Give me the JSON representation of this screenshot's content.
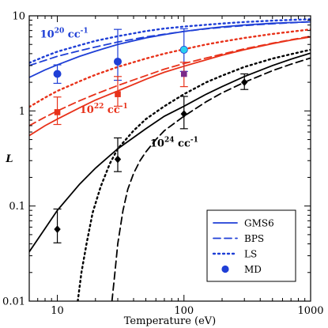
{
  "chart_data": {
    "type": "line",
    "xlabel": "Temperature (eV)",
    "ylabel": "L",
    "x_scale": "log",
    "y_scale": "log",
    "xlim": [
      6,
      1000
    ],
    "ylim": [
      0.01,
      10
    ],
    "x_ticks": [
      10,
      100,
      1000
    ],
    "x_tick_labels": [
      "10",
      "100",
      "1000"
    ],
    "y_ticks": [
      0.01,
      0.1,
      1,
      10
    ],
    "y_tick_labels": [
      "0.01",
      "0.1",
      "1",
      "10"
    ],
    "grid": false,
    "legend_position": "lower-right",
    "legend": [
      {
        "label": "GMS6",
        "style": "solid"
      },
      {
        "label": "BPS",
        "style": "dashed"
      },
      {
        "label": "LS",
        "style": "dotted"
      },
      {
        "label": "MD",
        "style": "marker"
      }
    ],
    "annotations": [
      {
        "base": "10",
        "exp": "20",
        "unit": " cc",
        "unit_exp": "-1",
        "color": "#1f3fd6",
        "x": 7.3,
        "y": 5.9
      },
      {
        "base": "10",
        "exp": "22",
        "unit": " cc",
        "unit_exp": "-1",
        "color": "#e8321a",
        "x": 15,
        "y": 0.95
      },
      {
        "base": "10",
        "exp": "24",
        "unit": " cc",
        "unit_exp": "-1",
        "color": "#000000",
        "x": 54,
        "y": 0.42
      }
    ],
    "series": [
      {
        "density": "1e20",
        "model": "GMS6",
        "style": "solid",
        "color": "#1f3fd6",
        "x": [
          6,
          8,
          10,
          15,
          20,
          30,
          50,
          70,
          100,
          150,
          200,
          300,
          500,
          700,
          1000
        ],
        "y": [
          2.25,
          2.7,
          3.05,
          3.75,
          4.25,
          5.0,
          5.85,
          6.35,
          6.85,
          7.35,
          7.65,
          8.0,
          8.35,
          8.5,
          8.65
        ]
      },
      {
        "density": "1e20",
        "model": "BPS",
        "style": "dashed",
        "color": "#1f3fd6",
        "x": [
          6,
          8,
          10,
          15,
          20,
          30,
          50,
          70,
          100,
          150,
          200,
          300,
          500,
          700,
          1000
        ],
        "y": [
          3.0,
          3.4,
          3.75,
          4.3,
          4.7,
          5.3,
          6.0,
          6.4,
          6.85,
          7.3,
          7.55,
          7.9,
          8.25,
          8.45,
          8.65
        ]
      },
      {
        "density": "1e20",
        "model": "LS",
        "style": "dotted",
        "color": "#1f3fd6",
        "x": [
          6,
          8,
          10,
          15,
          20,
          30,
          50,
          70,
          100,
          150,
          200,
          300,
          500,
          700,
          1000
        ],
        "y": [
          3.2,
          3.75,
          4.2,
          4.9,
          5.45,
          6.1,
          6.9,
          7.35,
          7.7,
          8.05,
          8.3,
          8.6,
          8.9,
          9.05,
          9.2
        ]
      },
      {
        "density": "1e22",
        "model": "GMS6",
        "style": "solid",
        "color": "#e8321a",
        "x": [
          6,
          8,
          10,
          15,
          20,
          30,
          50,
          70,
          100,
          150,
          200,
          300,
          500,
          700,
          1000
        ],
        "y": [
          0.55,
          0.7,
          0.82,
          1.08,
          1.3,
          1.62,
          2.15,
          2.55,
          2.95,
          3.45,
          3.85,
          4.4,
          5.1,
          5.55,
          6.0
        ]
      },
      {
        "density": "1e22",
        "model": "BPS",
        "style": "dashed",
        "color": "#e8321a",
        "x": [
          6,
          8,
          10,
          15,
          20,
          30,
          50,
          70,
          100,
          150,
          200,
          300,
          500,
          700,
          1000
        ],
        "y": [
          0.7,
          0.86,
          1.0,
          1.28,
          1.5,
          1.85,
          2.35,
          2.75,
          3.15,
          3.6,
          3.95,
          4.5,
          5.15,
          5.6,
          6.1
        ]
      },
      {
        "density": "1e22",
        "model": "LS",
        "style": "dotted",
        "color": "#e8321a",
        "x": [
          6,
          8,
          10,
          15,
          20,
          30,
          50,
          70,
          100,
          150,
          200,
          300,
          500,
          700,
          1000
        ],
        "y": [
          1.1,
          1.38,
          1.62,
          2.05,
          2.4,
          2.9,
          3.55,
          4.0,
          4.45,
          5.0,
          5.35,
          5.85,
          6.45,
          6.8,
          7.2
        ]
      },
      {
        "density": "1e24",
        "model": "GMS6",
        "style": "solid",
        "color": "#000000",
        "x": [
          6,
          8,
          10,
          15,
          20,
          30,
          50,
          70,
          100,
          150,
          200,
          300,
          500,
          700,
          1000
        ],
        "y": [
          0.033,
          0.058,
          0.09,
          0.17,
          0.25,
          0.4,
          0.65,
          0.88,
          1.12,
          1.5,
          1.8,
          2.3,
          3.0,
          3.5,
          4.05
        ]
      },
      {
        "density": "1e24",
        "model": "BPS",
        "style": "dashed",
        "color": "#000000",
        "x": [
          27,
          28.5,
          30,
          33,
          36,
          40,
          45,
          50,
          60,
          70,
          100,
          150,
          200,
          300,
          500,
          700,
          1000
        ],
        "y": [
          0.01,
          0.02,
          0.04,
          0.09,
          0.15,
          0.22,
          0.3,
          0.37,
          0.5,
          0.62,
          0.88,
          1.25,
          1.55,
          2.0,
          2.65,
          3.1,
          3.6
        ]
      },
      {
        "density": "1e24",
        "model": "LS",
        "style": "dotted",
        "color": "#000000",
        "x": [
          14.5,
          15.5,
          17,
          19,
          22,
          26,
          30,
          40,
          50,
          70,
          100,
          150,
          200,
          300,
          500,
          700,
          1000
        ],
        "y": [
          0.01,
          0.02,
          0.04,
          0.085,
          0.16,
          0.28,
          0.4,
          0.62,
          0.82,
          1.12,
          1.5,
          2.0,
          2.35,
          2.9,
          3.55,
          3.95,
          4.4
        ]
      },
      {
        "density": "1e20",
        "model": "MD",
        "style": "marker",
        "marker": "circle",
        "color": "#1f3fd6",
        "points": [
          {
            "x": 10,
            "y": 2.45,
            "lo": 1.95,
            "hi": 3.05,
            "fill": "#1f3fd6"
          },
          {
            "x": 30,
            "y": 3.3,
            "lo": 2.1,
            "hi": 7.2,
            "fill": "#1f3fd6"
          },
          {
            "x": 100,
            "y": 4.4,
            "lo": 2.6,
            "hi": 7.3,
            "fill": "#2ad0f0"
          }
        ]
      },
      {
        "density": "1e22",
        "model": "MD",
        "style": "marker",
        "marker": "square",
        "color": "#e8321a",
        "points": [
          {
            "x": 10,
            "y": 0.97,
            "lo": 0.72,
            "hi": 1.4,
            "fill": "#e8321a"
          },
          {
            "x": 30,
            "y": 1.5,
            "lo": 1.12,
            "hi": 2.3,
            "fill": "#e8321a"
          },
          {
            "x": 100,
            "y": 2.45,
            "lo": 1.8,
            "hi": 3.25,
            "fill": "#7a2a8a"
          }
        ]
      },
      {
        "density": "1e24",
        "model": "MD",
        "style": "marker",
        "marker": "diamond",
        "color": "#000000",
        "points": [
          {
            "x": 10,
            "y": 0.057,
            "lo": 0.041,
            "hi": 0.093,
            "fill": "#000000"
          },
          {
            "x": 30,
            "y": 0.31,
            "lo": 0.23,
            "hi": 0.52,
            "fill": "#000000"
          },
          {
            "x": 100,
            "y": 0.93,
            "lo": 0.65,
            "hi": 1.42,
            "fill": "#000000"
          },
          {
            "x": 300,
            "y": 2.0,
            "lo": 1.68,
            "hi": 2.45,
            "fill": "#000000"
          }
        ]
      }
    ]
  }
}
